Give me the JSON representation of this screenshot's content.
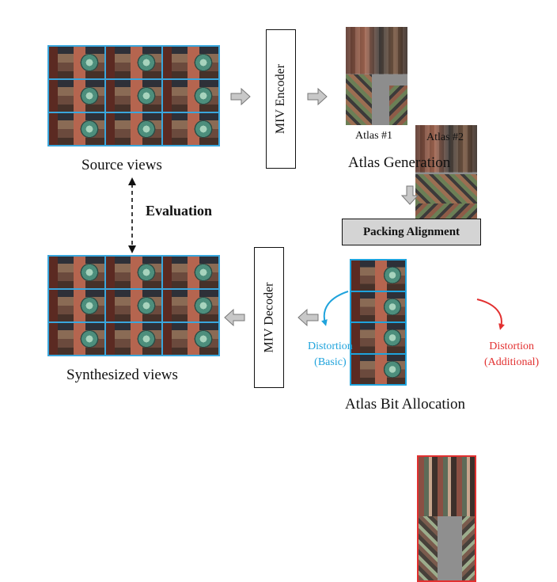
{
  "source": {
    "caption": "Source views"
  },
  "encoder": {
    "label": "MIV Encoder"
  },
  "atlas_generation": {
    "atlas1_label": "Atlas #1",
    "atlas2_label": "Atlas #2",
    "caption": "Atlas Generation"
  },
  "packing": {
    "label": "Packing Alignment"
  },
  "evaluation": {
    "label": "Evaluation"
  },
  "decoder": {
    "label": "MIV Decoder"
  },
  "synthesized": {
    "caption": "Synthesized views"
  },
  "bit_allocation": {
    "distortion_basic": {
      "line1": "Distortion",
      "line2": "(Basic)"
    },
    "distortion_additional": {
      "line1": "Distortion",
      "line2": "(Additional)"
    },
    "caption": "Atlas Bit Allocation"
  },
  "colors": {
    "basic": "#1fa3dc",
    "additional": "#e23030",
    "arrow_fill": "#c8c8c8"
  },
  "icons": {
    "flow_arrow": "block-arrow-icon",
    "evaluation_arrow": "dashed-double-arrow-icon"
  }
}
